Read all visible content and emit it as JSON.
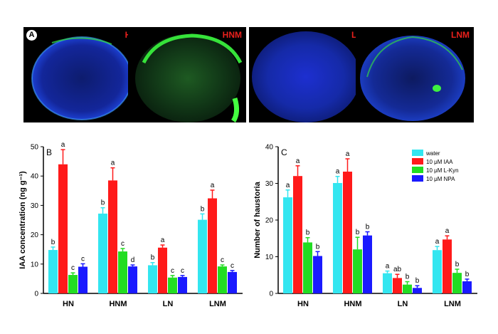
{
  "panel_a": {
    "letter": "A",
    "images": [
      {
        "label": "HN"
      },
      {
        "label": "HNM"
      },
      {
        "label": "LN"
      },
      {
        "label": "LNM"
      }
    ]
  },
  "colors": {
    "water": "#33e6f0",
    "iaa": "#ff1a1a",
    "lkyn": "#22dd22",
    "npa": "#1a1aff",
    "tag": "#e8201c"
  },
  "chart_data": [
    {
      "panel": "B",
      "type": "bar",
      "ylabel": "IAA concentration (ng g⁻¹)",
      "ylim": [
        0,
        50
      ],
      "yticks": [
        0,
        10,
        20,
        30,
        40,
        50
      ],
      "categories": [
        "HN",
        "HNM",
        "LN",
        "LNM"
      ],
      "series": [
        {
          "values": [
            14.8,
            27.2,
            9.6,
            25.1
          ],
          "errors": [
            1.0,
            2.0,
            0.9,
            2.0
          ],
          "letters": [
            "b",
            "b",
            "b",
            "b"
          ]
        },
        {
          "values": [
            44.0,
            38.5,
            15.6,
            32.4
          ],
          "errors": [
            5.0,
            4.3,
            0.9,
            2.8
          ],
          "letters": [
            "a",
            "a",
            "a",
            "a"
          ]
        },
        {
          "values": [
            6.3,
            14.3,
            5.4,
            9.2
          ],
          "errors": [
            0.7,
            1.0,
            0.7,
            0.5
          ],
          "letters": [
            "c",
            "c",
            "c",
            "c"
          ]
        },
        {
          "values": [
            9.1,
            9.2,
            5.6,
            7.3
          ],
          "errors": [
            1.0,
            0.5,
            0.5,
            0.5
          ],
          "letters": [
            "c",
            "d",
            "c",
            "c"
          ]
        }
      ]
    },
    {
      "panel": "C",
      "type": "bar",
      "ylabel": "Number of haustoria",
      "ylim": [
        0,
        40
      ],
      "yticks": [
        0,
        10,
        20,
        30,
        40
      ],
      "categories": [
        "HN",
        "HNM",
        "LN",
        "LNM"
      ],
      "legend_position": "top-right",
      "series": [
        {
          "name": "water",
          "values": [
            26.2,
            30.1,
            5.5,
            11.8
          ],
          "errors": [
            2.0,
            1.8,
            0.6,
            1.0
          ],
          "letters": [
            "a",
            "a",
            "a",
            "a"
          ]
        },
        {
          "name": "10 μM IAA",
          "values": [
            32.0,
            33.2,
            4.2,
            14.7
          ],
          "errors": [
            2.8,
            3.5,
            1.0,
            1.0
          ],
          "letters": [
            "a",
            "a",
            "ab",
            "a"
          ]
        },
        {
          "name": "10 μM L-Kyn",
          "values": [
            13.9,
            12.0,
            2.4,
            5.6
          ],
          "errors": [
            1.3,
            3.3,
            0.8,
            1.0
          ],
          "letters": [
            "b",
            "b",
            "b",
            "b"
          ]
        },
        {
          "name": "10 μM NPA",
          "values": [
            10.2,
            15.8,
            1.5,
            3.3
          ],
          "errors": [
            1.2,
            1.0,
            0.6,
            0.6
          ],
          "letters": [
            "b",
            "b",
            "b",
            "b"
          ]
        }
      ]
    }
  ]
}
